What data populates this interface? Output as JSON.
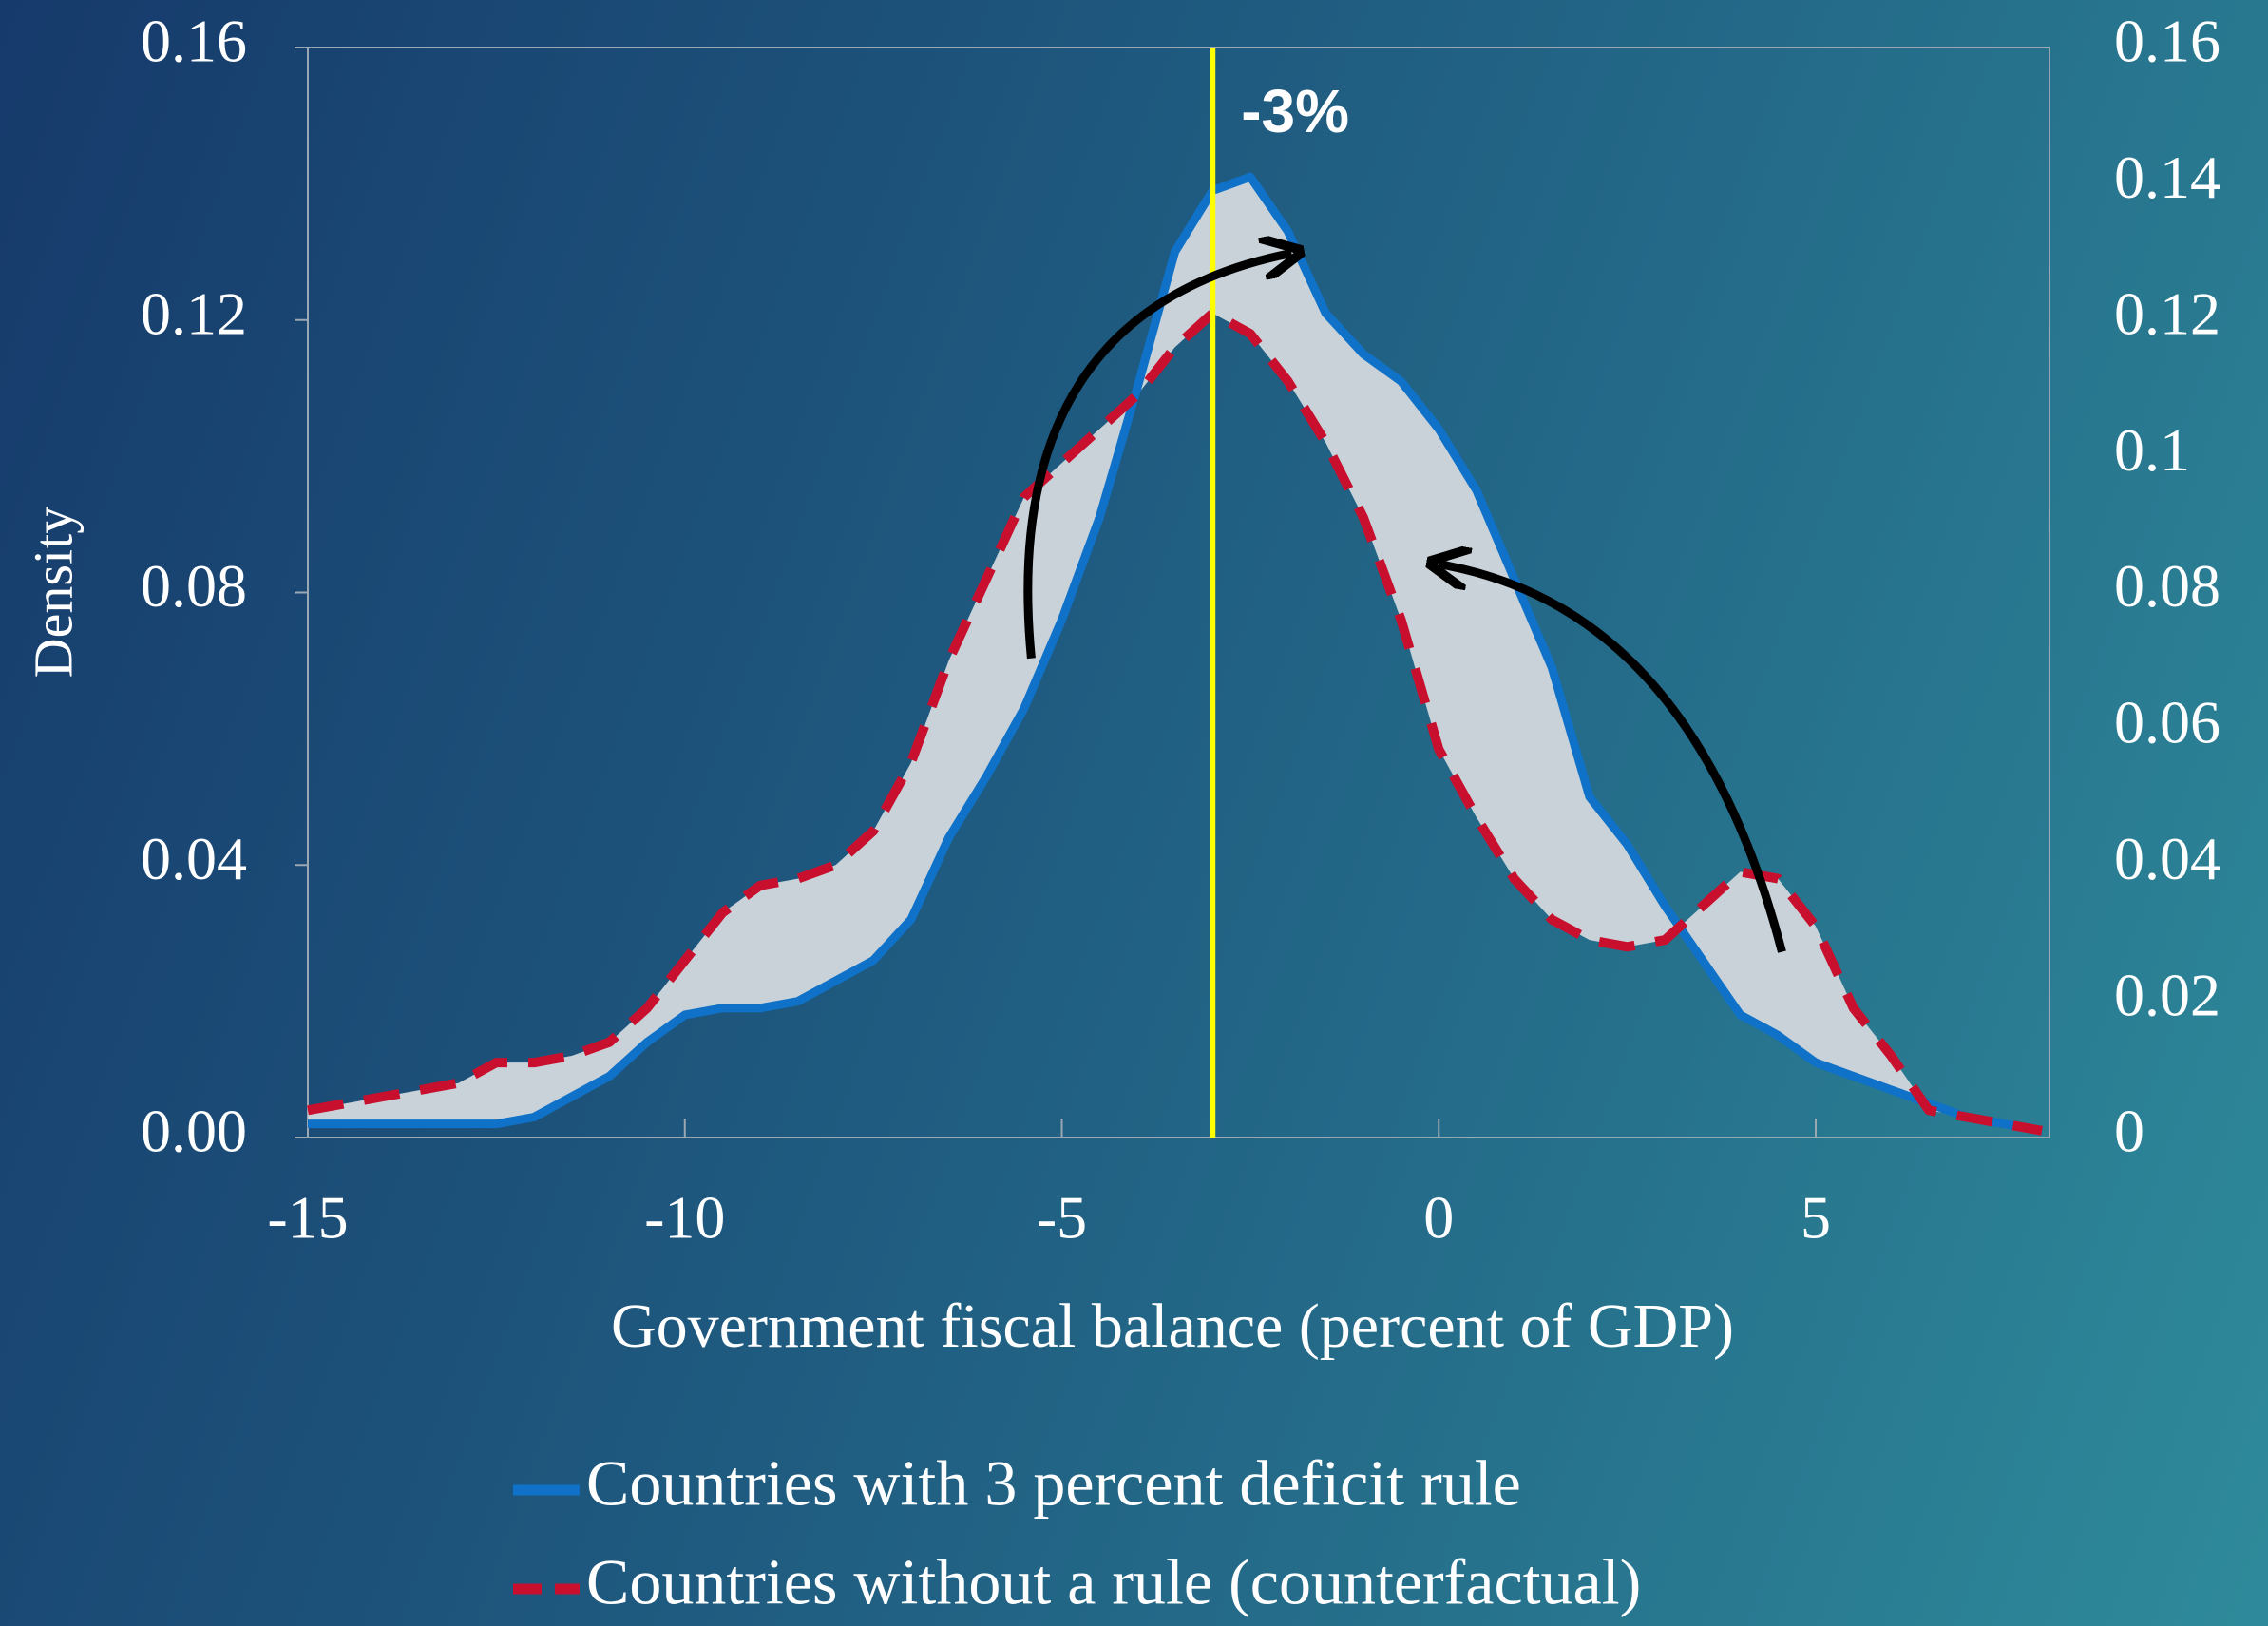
{
  "chart_data": {
    "type": "line",
    "x_label": "Government fiscal balance (percent of GDP)",
    "y_label": "Density",
    "x": [
      -15,
      -14,
      -13,
      -12.5,
      -12,
      -11.5,
      -11,
      -10.5,
      -10,
      -9.5,
      -9,
      -8.5,
      -8,
      -7.5,
      -7,
      -6.5,
      -6,
      -5.5,
      -5,
      -4.5,
      -4,
      -3.5,
      -3,
      -2.5,
      -2,
      -1.5,
      -1,
      -0.5,
      0,
      0.5,
      1,
      1.5,
      2,
      2.5,
      3,
      3.5,
      4,
      4.5,
      5,
      5.5,
      6,
      6.5,
      7,
      7.5,
      8
    ],
    "series": [
      {
        "name": "Countries with 3 percent deficit rule",
        "color": "#0f72c8",
        "style": "solid",
        "values": [
          0.002,
          0.002,
          0.002,
          0.002,
          0.003,
          0.006,
          0.009,
          0.014,
          0.018,
          0.019,
          0.019,
          0.02,
          0.023,
          0.026,
          0.032,
          0.044,
          0.053,
          0.063,
          0.076,
          0.091,
          0.11,
          0.13,
          0.139,
          0.141,
          0.133,
          0.121,
          0.115,
          0.111,
          0.104,
          0.095,
          0.082,
          0.069,
          0.05,
          0.043,
          0.034,
          0.026,
          0.018,
          0.015,
          0.011,
          0.009,
          0.007,
          0.005,
          0.003,
          0.002,
          0.001
        ]
      },
      {
        "name": "Countries without a rule (counterfactual)",
        "color": "#c8102e",
        "style": "dashed",
        "values": [
          0.004,
          0.006,
          0.008,
          0.011,
          0.011,
          0.012,
          0.014,
          0.019,
          0.026,
          0.033,
          0.037,
          0.038,
          0.04,
          0.045,
          0.055,
          0.07,
          0.082,
          0.094,
          0.099,
          0.104,
          0.109,
          0.116,
          0.121,
          0.118,
          0.111,
          0.102,
          0.091,
          0.076,
          0.057,
          0.047,
          0.038,
          0.032,
          0.029,
          0.028,
          0.029,
          0.034,
          0.039,
          0.038,
          0.031,
          0.019,
          0.012,
          0.004,
          0.003,
          0.002,
          0.001
        ]
      }
    ],
    "xlim": [
      -15,
      8.1
    ],
    "xticks": [
      -15,
      -10,
      -5,
      0,
      5
    ],
    "ylim": [
      0,
      0.16
    ],
    "yticks": [
      {
        "value": 0,
        "label": "0.00"
      },
      0.04,
      0.08,
      0.12,
      0.16
    ],
    "y2lim": [
      0,
      0.16
    ],
    "y2ticks": [
      0,
      0.02,
      0.04,
      0.06,
      0.08,
      0.1,
      0.12,
      0.14,
      0.16
    ],
    "vline": {
      "x": -3,
      "label": "-3%",
      "color": "#ffff00"
    },
    "fill_between_color": "#c9d2d8",
    "legend": "bottom"
  }
}
